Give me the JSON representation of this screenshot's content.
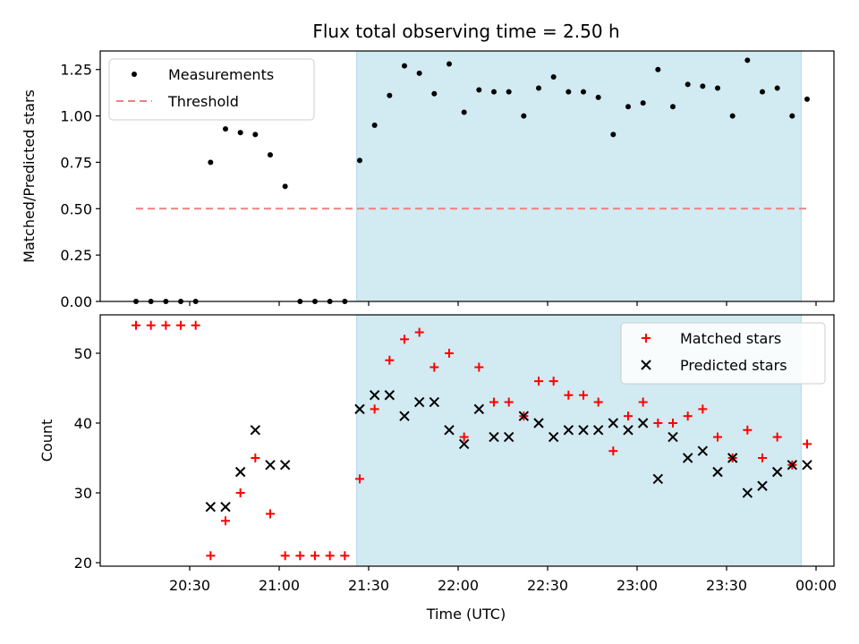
{
  "chart_data": {
    "title": "Flux total observing time = 2.50 h",
    "xlabel": "Time (UTC)",
    "x_tick_labels": [
      "20:30",
      "21:00",
      "21:30",
      "22:00",
      "22:30",
      "23:00",
      "23:30",
      "00:00"
    ],
    "x_ticks": [
      "20:30",
      "21:00",
      "21:30",
      "22:00",
      "22:30",
      "23:00",
      "23:30",
      "00:00"
    ],
    "x_unit": "hours UTC",
    "xlim": [
      "20:00",
      "00:06"
    ],
    "shaded_region": {
      "start": "21:26",
      "end": "23:55",
      "color": "#add8e6"
    },
    "panels": [
      {
        "type": "scatter",
        "ylabel": "Matched/Predicted stars",
        "ylim": [
          0.0,
          1.35
        ],
        "y_ticks": [
          0.0,
          0.25,
          0.5,
          0.75,
          1.0,
          1.25
        ],
        "y_tick_labels": [
          "0.00",
          "0.25",
          "0.50",
          "0.75",
          "1.00",
          "1.25"
        ],
        "legend": "top-left",
        "series": [
          {
            "name": "Measurements",
            "marker": "dot",
            "color": "#000000",
            "x": [
              "20:12",
              "20:17",
              "20:22",
              "20:27",
              "20:32",
              "20:37",
              "20:42",
              "20:47",
              "20:52",
              "20:57",
              "21:02",
              "21:07",
              "21:12",
              "21:17",
              "21:22",
              "21:27",
              "21:32",
              "21:37",
              "21:42",
              "21:47",
              "21:52",
              "21:57",
              "22:02",
              "22:07",
              "22:12",
              "22:17",
              "22:22",
              "22:27",
              "22:32",
              "22:37",
              "22:42",
              "22:47",
              "22:52",
              "22:57",
              "23:02",
              "23:07",
              "23:12",
              "23:17",
              "23:22",
              "23:27",
              "23:32",
              "23:37",
              "23:42",
              "23:47",
              "23:52",
              "23:57"
            ],
            "y": [
              0.0,
              0.0,
              0.0,
              0.0,
              0.0,
              0.75,
              0.93,
              0.91,
              0.9,
              0.79,
              0.62,
              0.0,
              0.0,
              0.0,
              0.0,
              0.76,
              0.95,
              1.11,
              1.27,
              1.23,
              1.12,
              1.28,
              1.02,
              1.14,
              1.13,
              1.13,
              1.0,
              1.15,
              1.21,
              1.13,
              1.13,
              1.1,
              0.9,
              1.05,
              1.07,
              1.25,
              1.05,
              1.17,
              1.16,
              1.15,
              1.0,
              1.3,
              1.13,
              1.15,
              1.0,
              1.09
            ]
          },
          {
            "name": "Threshold",
            "marker": "dashed-line",
            "color": "#f08080",
            "x": [
              "20:12",
              "23:57"
            ],
            "y": [
              0.5,
              0.5
            ]
          }
        ]
      },
      {
        "type": "scatter",
        "ylabel": "Count",
        "ylim": [
          19.5,
          55.5
        ],
        "y_ticks": [
          20,
          30,
          40,
          50
        ],
        "y_tick_labels": [
          "20",
          "30",
          "40",
          "50"
        ],
        "legend": "top-right",
        "series": [
          {
            "name": "Matched stars",
            "marker": "plus",
            "color": "#ff0000",
            "x": [
              "20:12",
              "20:17",
              "20:22",
              "20:27",
              "20:32",
              "20:37",
              "20:42",
              "20:47",
              "20:52",
              "20:57",
              "21:02",
              "21:07",
              "21:12",
              "21:17",
              "21:22",
              "21:27",
              "21:32",
              "21:37",
              "21:42",
              "21:47",
              "21:52",
              "21:57",
              "22:02",
              "22:07",
              "22:12",
              "22:17",
              "22:22",
              "22:27",
              "22:32",
              "22:37",
              "22:42",
              "22:47",
              "22:52",
              "22:57",
              "23:02",
              "23:07",
              "23:12",
              "23:17",
              "23:22",
              "23:27",
              "23:32",
              "23:37",
              "23:42",
              "23:47",
              "23:52",
              "23:57"
            ],
            "y": [
              54,
              54,
              54,
              54,
              54,
              21,
              26,
              30,
              35,
              27,
              21,
              21,
              21,
              21,
              21,
              32,
              42,
              49,
              52,
              53,
              48,
              50,
              38,
              48,
              43,
              43,
              41,
              46,
              46,
              44,
              44,
              43,
              36,
              41,
              43,
              40,
              40,
              41,
              42,
              38,
              35,
              39,
              35,
              38,
              34,
              37
            ]
          },
          {
            "name": "Predicted stars",
            "marker": "x",
            "color": "#000000",
            "x": [
              "20:37",
              "20:42",
              "20:47",
              "20:52",
              "20:57",
              "21:02",
              "21:27",
              "21:32",
              "21:37",
              "21:42",
              "21:47",
              "21:52",
              "21:57",
              "22:02",
              "22:07",
              "22:12",
              "22:17",
              "22:22",
              "22:27",
              "22:32",
              "22:37",
              "22:42",
              "22:47",
              "22:52",
              "22:57",
              "23:02",
              "23:07",
              "23:12",
              "23:17",
              "23:22",
              "23:27",
              "23:32",
              "23:37",
              "23:42",
              "23:47",
              "23:52",
              "23:57"
            ],
            "y": [
              28,
              28,
              33,
              39,
              34,
              34,
              42,
              44,
              44,
              41,
              43,
              43,
              39,
              37,
              42,
              38,
              38,
              41,
              40,
              38,
              39,
              39,
              39,
              40,
              39,
              40,
              32,
              38,
              35,
              36,
              33,
              35,
              30,
              31,
              33,
              34,
              34
            ]
          }
        ]
      }
    ]
  }
}
